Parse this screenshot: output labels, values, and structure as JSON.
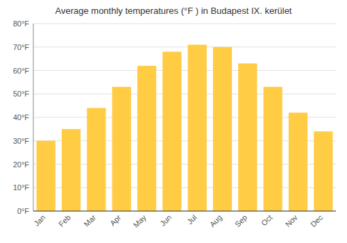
{
  "chart_data": {
    "type": "bar",
    "title": "Average monthly temperatures (°F ) in Budapest IX. kerület",
    "categories": [
      "Jan",
      "Feb",
      "Mar",
      "Apr",
      "May",
      "Jun",
      "Jul",
      "Aug",
      "Sep",
      "Oct",
      "Nov",
      "Dec"
    ],
    "values": [
      30,
      35,
      44,
      53,
      62,
      68,
      71,
      70,
      63,
      53,
      42,
      34
    ],
    "color": "#FFCC44",
    "ylim": [
      0,
      80
    ],
    "yticks": [
      {
        "value": 0,
        "label": "0°F"
      },
      {
        "value": 10,
        "label": "10°F"
      },
      {
        "value": 20,
        "label": "20°F"
      },
      {
        "value": 30,
        "label": "30°F"
      },
      {
        "value": 40,
        "label": "40°F"
      },
      {
        "value": 50,
        "label": "50°F"
      },
      {
        "value": 60,
        "label": "60°F"
      },
      {
        "value": 70,
        "label": "70°F"
      },
      {
        "value": 80,
        "label": "80°F"
      }
    ],
    "grid": true
  }
}
